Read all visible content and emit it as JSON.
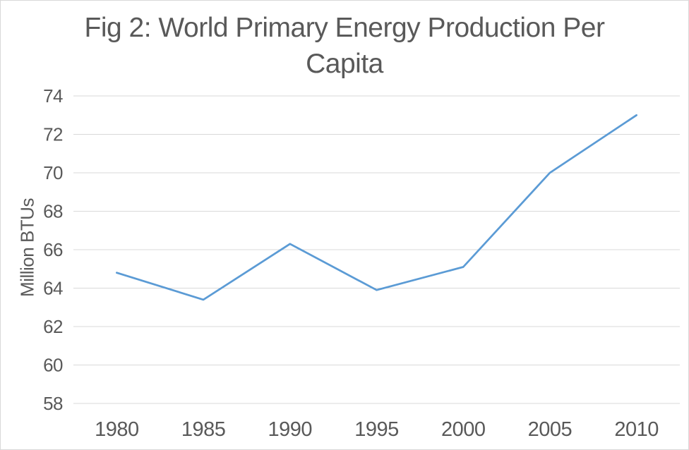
{
  "chart_data": {
    "type": "line",
    "title": "Fig 2: World Primary Energy Production Per Capita",
    "xlabel": "",
    "ylabel": "Million BTUs",
    "categories": [
      "1980",
      "1985",
      "1990",
      "1995",
      "2000",
      "2005",
      "2010"
    ],
    "values": [
      64.8,
      63.4,
      66.3,
      63.9,
      65.1,
      70.0,
      73.0
    ],
    "ylim": [
      58,
      74
    ],
    "y_tick_step": 2,
    "y_ticks": [
      58,
      60,
      62,
      64,
      66,
      68,
      70,
      72,
      74
    ],
    "grid": true,
    "legend_position": "none",
    "line_color": "#5B9BD5"
  },
  "style": {
    "text_color": "#595959",
    "gridline_color": "#D9D9D9",
    "border_color": "#D9D9D9",
    "background": "#FFFFFF"
  }
}
